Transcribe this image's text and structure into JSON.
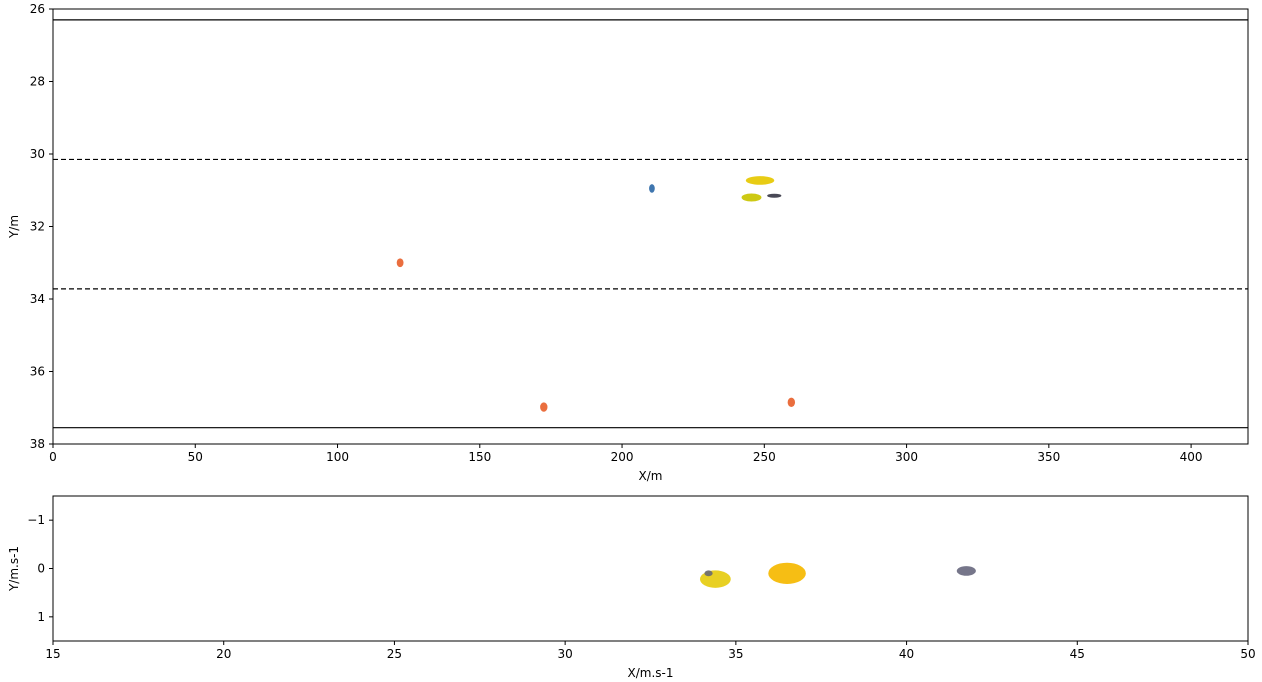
{
  "chart_data": [
    {
      "type": "scatter",
      "xlabel": "X/m",
      "ylabel": "Y/m",
      "xlim": [
        0,
        420
      ],
      "ylim": [
        38,
        26
      ],
      "y_inverted": true,
      "xticks": [
        0,
        50,
        100,
        150,
        200,
        250,
        300,
        350,
        400
      ],
      "yticks": [
        26,
        28,
        30,
        32,
        34,
        36,
        38
      ],
      "grid": false,
      "hlines": [
        {
          "y": 26.3,
          "style": "solid"
        },
        {
          "y": 30.15,
          "style": "dashed"
        },
        {
          "y": 33.72,
          "style": "dashed"
        },
        {
          "y": 37.55,
          "style": "solid"
        }
      ],
      "points": [
        {
          "x": 210.5,
          "y": 30.95,
          "color": "#2f6aa8",
          "rx": 1.0,
          "ry": 0.12
        },
        {
          "x": 248.5,
          "y": 30.73,
          "color": "#e6c800",
          "rx": 5.0,
          "ry": 0.12
        },
        {
          "x": 245.5,
          "y": 31.2,
          "color": "#c9c400",
          "rx": 3.5,
          "ry": 0.11
        },
        {
          "x": 253.5,
          "y": 31.15,
          "color": "#3a3a48",
          "rx": 2.5,
          "ry": 0.05
        },
        {
          "x": 122.0,
          "y": 33.0,
          "color": "#e8622e",
          "rx": 1.2,
          "ry": 0.12
        },
        {
          "x": 172.5,
          "y": 36.98,
          "color": "#e8622e",
          "rx": 1.3,
          "ry": 0.13
        },
        {
          "x": 259.5,
          "y": 36.85,
          "color": "#e8622e",
          "rx": 1.3,
          "ry": 0.13
        }
      ]
    },
    {
      "type": "scatter",
      "xlabel": "X/m.s-1",
      "ylabel": "Y/m.s-1",
      "xlim": [
        15,
        50
      ],
      "ylim": [
        1.5,
        -1.5
      ],
      "y_inverted": true,
      "xticks": [
        15,
        20,
        25,
        30,
        35,
        40,
        45,
        50
      ],
      "yticks": [
        -1,
        0,
        1
      ],
      "grid": false,
      "points": [
        {
          "x": 34.4,
          "y": 0.22,
          "color": "#e6cc10",
          "rx": 0.45,
          "ry": 0.18
        },
        {
          "x": 34.2,
          "y": 0.1,
          "color": "#6a6a72",
          "rx": 0.12,
          "ry": 0.06
        },
        {
          "x": 36.5,
          "y": 0.1,
          "color": "#f5b800",
          "rx": 0.55,
          "ry": 0.22
        },
        {
          "x": 41.75,
          "y": 0.05,
          "color": "#6a6a80",
          "rx": 0.28,
          "ry": 0.1
        }
      ]
    }
  ]
}
